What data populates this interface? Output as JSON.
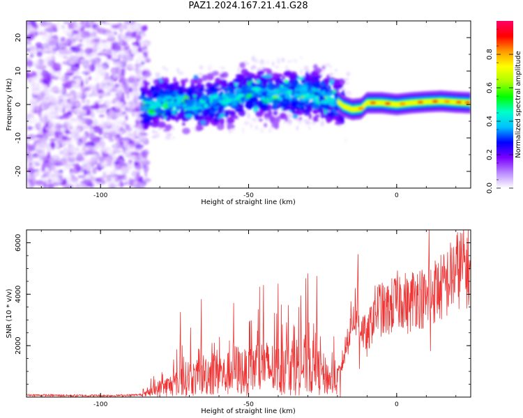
{
  "figure": {
    "title": "PAZ1.2024.167.21.41.G28"
  },
  "chart_data": [
    {
      "type": "heatmap",
      "title": "",
      "xlabel": "Height of straight line (km)",
      "ylabel": "Frequency (Hz)",
      "xlim": [
        -125,
        25
      ],
      "ylim": [
        -25,
        25
      ],
      "xticks": [
        "-100",
        "-50",
        "0"
      ],
      "yticks": [
        "-20",
        "-10",
        "0",
        "10",
        "20"
      ],
      "colorbar": {
        "label": "Normalized spectral amplitude",
        "range": [
          0,
          1
        ],
        "ticks": [
          "0.0",
          "0.2",
          "0.4",
          "0.6",
          "0.8"
        ],
        "colormap": "gist_ncar_r",
        "colors": [
          "#ffffff",
          "#b98aff",
          "#7a00ff",
          "#0000ff",
          "#00bfff",
          "#00ffcc",
          "#00ff00",
          "#aaff00",
          "#ffff00",
          "#ff9900",
          "#ff0000",
          "#ff0066"
        ]
      },
      "ridge": {
        "x": [
          -85,
          -80,
          -75,
          -70,
          -65,
          -60,
          -55,
          -50,
          -45,
          -40,
          -35,
          -30,
          -25,
          -20,
          -18,
          -15,
          -12,
          -10,
          -5,
          0,
          5,
          10,
          15,
          20,
          25
        ],
        "frequency": [
          -0.5,
          0.5,
          0.8,
          0.2,
          0.5,
          1.0,
          2.0,
          3.5,
          3.0,
          3.0,
          3.5,
          3.0,
          2.5,
          1.0,
          -0.5,
          -1.5,
          -1.2,
          0.5,
          0.5,
          0.0,
          0.5,
          0.8,
          1.0,
          0.7,
          0.5
        ]
      }
    },
    {
      "type": "line",
      "title": "",
      "xlabel": "Height of straight line (km)",
      "ylabel": "SNR (10 * v/v)",
      "xlim": [
        -125,
        25
      ],
      "ylim": [
        0,
        6500
      ],
      "xticks": [
        "-100",
        "-50",
        "0"
      ],
      "yticks": [
        "2000",
        "4000",
        "6000"
      ],
      "series": [
        {
          "color": "#ee3333",
          "x": [
            -125,
            -110,
            -95,
            -88,
            -85,
            -80,
            -75,
            -72,
            -70,
            -68,
            -65,
            -62,
            -60,
            -58,
            -55,
            -52,
            -50,
            -48,
            -45,
            -42,
            -40,
            -38,
            -35,
            -32,
            -30,
            -28,
            -25,
            -22,
            -20,
            -18,
            -16,
            -14,
            -12,
            -10,
            -8,
            -6,
            -4,
            -2,
            0,
            2,
            4,
            6,
            8,
            10,
            12,
            14,
            16,
            18,
            20,
            22,
            25
          ],
          "y": [
            80,
            60,
            60,
            80,
            100,
            350,
            500,
            650,
            800,
            700,
            900,
            950,
            1000,
            800,
            1100,
            1000,
            900,
            1200,
            1150,
            1100,
            1000,
            1300,
            1250,
            1200,
            1300,
            1100,
            900,
            650,
            800,
            1500,
            2600,
            3400,
            2800,
            2200,
            3200,
            3500,
            3300,
            3500,
            3700,
            3900,
            3500,
            4000,
            3900,
            3700,
            4100,
            4200,
            4300,
            4600,
            4900,
            5100,
            5000
          ],
          "peaks": [
            {
              "x": -73,
              "y": 3300
            },
            {
              "x": -66,
              "y": 3800
            },
            {
              "x": -55,
              "y": 3650
            },
            {
              "x": -45,
              "y": 4350
            },
            {
              "x": -40,
              "y": 4400
            },
            {
              "x": -30,
              "y": 4800
            },
            {
              "x": -27,
              "y": 4700
            },
            {
              "x": -13,
              "y": 5550
            },
            {
              "x": 11,
              "y": 6500
            }
          ],
          "dips": [
            {
              "x": -19,
              "y": 0
            },
            {
              "x": -12.5,
              "y": 1100
            },
            {
              "x": 11.5,
              "y": 1800
            }
          ]
        }
      ]
    }
  ]
}
